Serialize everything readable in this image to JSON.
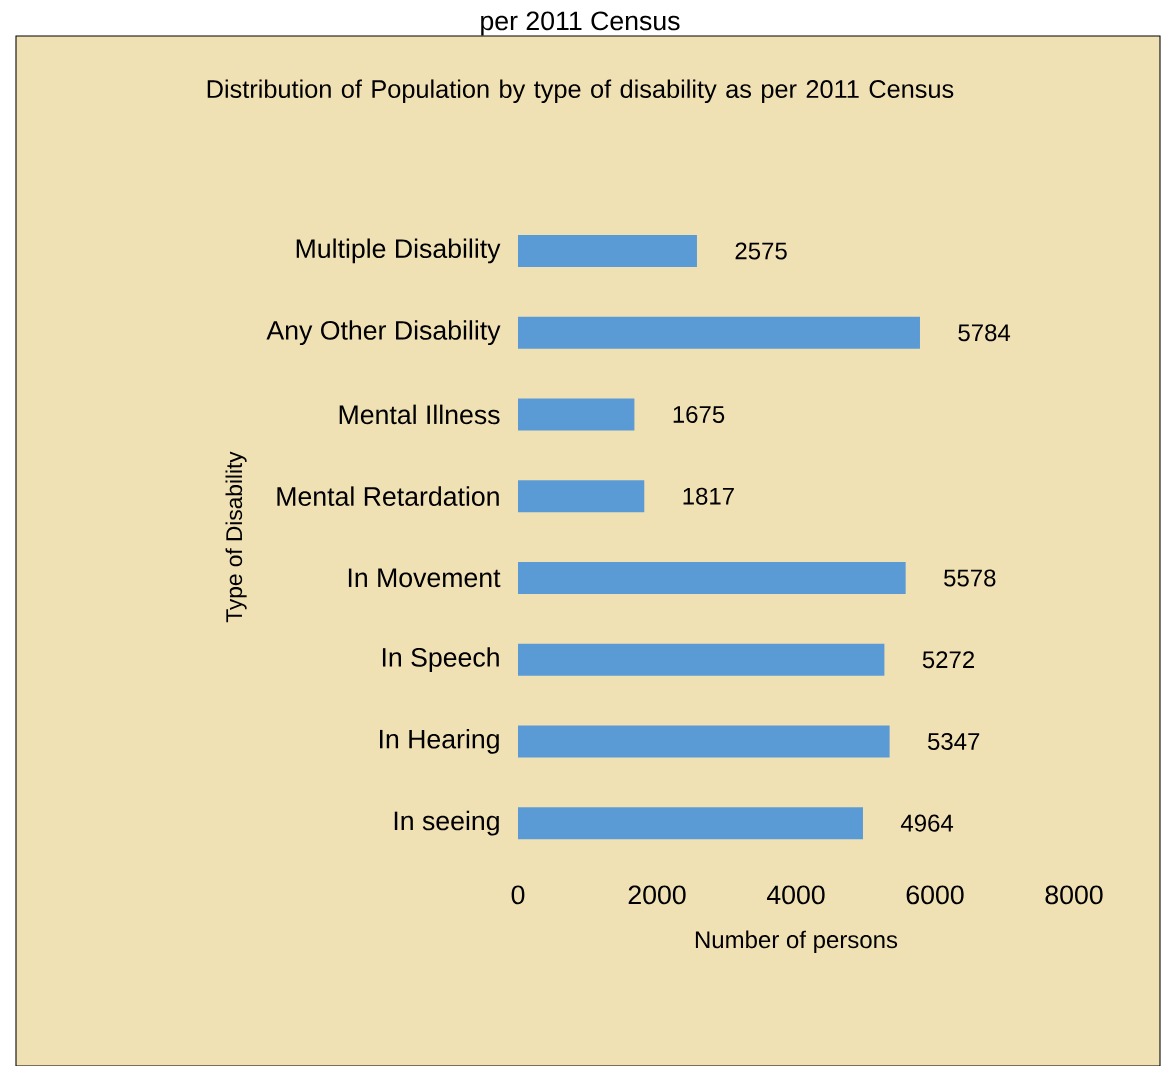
{
  "chart_data": {
    "type": "bar",
    "orientation": "horizontal",
    "title": "Distribution of Population by type of disability as per 2011 Census",
    "annotations": [
      "per 2011 Census"
    ],
    "xlabel": "Number of persons",
    "ylabel": "Type of Disability",
    "categories": [
      "Multiple Disability",
      "Any Other Disability",
      "Mental Illness",
      "Mental Retardation",
      "In Movement",
      "In Speech",
      "In Hearing",
      "In seeing"
    ],
    "values": [
      2575,
      5784,
      1675,
      1817,
      5578,
      5272,
      5347,
      4964
    ],
    "color": "#5b9bd5",
    "xlim": [
      0,
      8000
    ],
    "xticks": [
      0,
      2000,
      4000,
      6000,
      8000
    ],
    "data_labels": true,
    "grid": false
  }
}
